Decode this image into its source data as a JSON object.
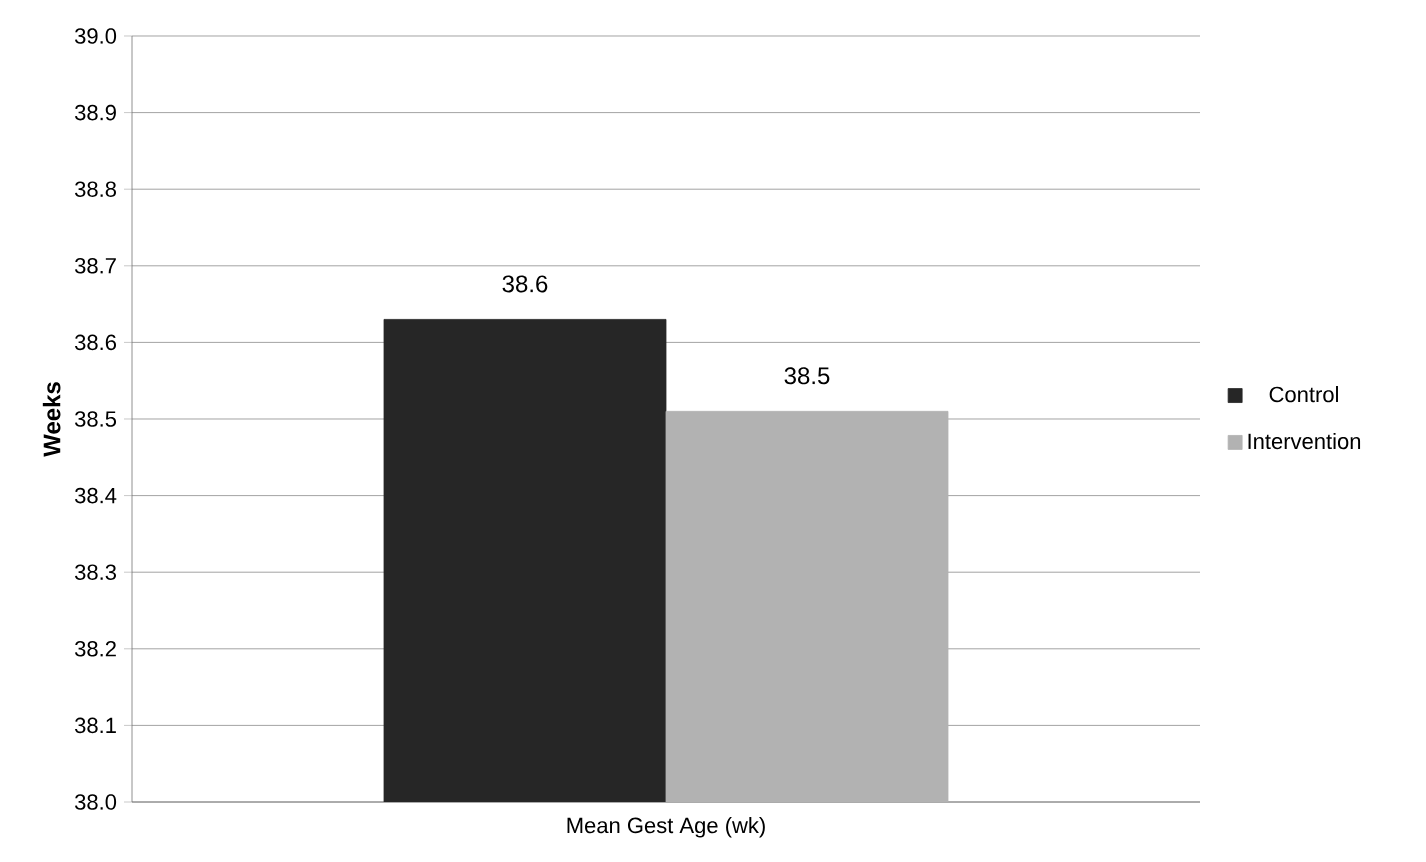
{
  "chart_data": {
    "type": "bar",
    "categories": [
      "Mean Gest Age (wk)"
    ],
    "ylabel": "Weeks",
    "series": [
      {
        "name": "Control",
        "color": "#262626",
        "values": [
          38.63
        ],
        "value_labels": [
          "38.6"
        ]
      },
      {
        "name": "Intervention",
        "color": "#b2b2b2",
        "values": [
          38.51
        ],
        "value_labels": [
          "38.5"
        ]
      }
    ],
    "ylim": [
      38.0,
      39.0
    ],
    "yticks": [
      {
        "value": 38.0,
        "label": "38.0"
      },
      {
        "value": 38.1,
        "label": "38.1"
      },
      {
        "value": 38.2,
        "label": "38.2"
      },
      {
        "value": 38.3,
        "label": "38.3"
      },
      {
        "value": 38.4,
        "label": "38.4"
      },
      {
        "value": 38.5,
        "label": "38.5"
      },
      {
        "value": 38.6,
        "label": "38.6"
      },
      {
        "value": 38.7,
        "label": "38.7"
      },
      {
        "value": 38.8,
        "label": "38.8"
      },
      {
        "value": 38.9,
        "label": "38.9"
      },
      {
        "value": 39.0,
        "label": "39.0"
      }
    ],
    "grid": "y",
    "legend": "right"
  }
}
